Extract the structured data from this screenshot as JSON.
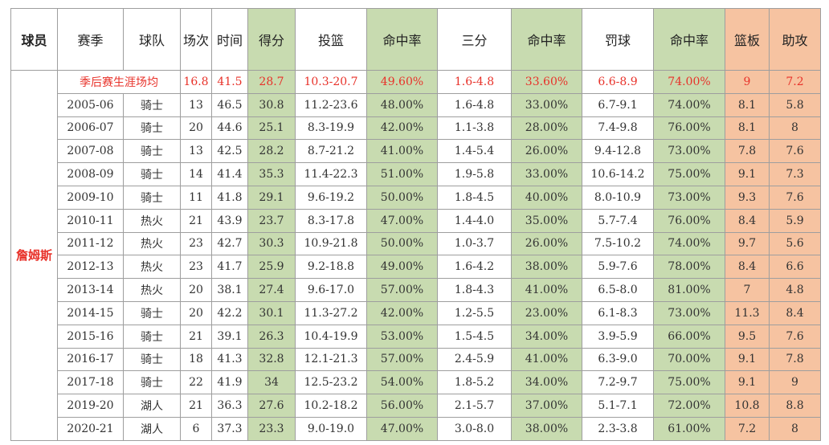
{
  "headers": [
    "球员",
    "赛季",
    "球队",
    "场次",
    "时间",
    "得分",
    "投篮",
    "命中率",
    "三分",
    "命中率",
    "罚球",
    "命中率",
    "篮板",
    "助攻"
  ],
  "player": "詹姆斯",
  "career": {
    "label": "季后赛生涯场均",
    "cells": [
      "16.8",
      "41.5",
      "28.7",
      "10.3-20.7",
      "49.60%",
      "1.6-4.8",
      "33.60%",
      "6.6-8.9",
      "74.00%",
      "9",
      "7.2"
    ]
  },
  "rows": [
    [
      "2005-06",
      "骑士",
      "13",
      "46.5",
      "30.8",
      "11.2-23.6",
      "48.00%",
      "1.6-4.8",
      "33.00%",
      "6.7-9.1",
      "74.00%",
      "8.1",
      "5.8"
    ],
    [
      "2006-07",
      "骑士",
      "20",
      "44.6",
      "25.1",
      "8.3-19.9",
      "42.00%",
      "1.1-3.8",
      "28.00%",
      "7.4-9.8",
      "76.00%",
      "8.1",
      "8"
    ],
    [
      "2007-08",
      "骑士",
      "13",
      "42.5",
      "28.2",
      "8.7-21.2",
      "41.00%",
      "1.4-5.4",
      "26.00%",
      "9.4-12.8",
      "73.00%",
      "7.8",
      "7.6"
    ],
    [
      "2008-09",
      "骑士",
      "14",
      "41.4",
      "35.3",
      "11.4-22.3",
      "51.00%",
      "1.9-5.8",
      "33.00%",
      "10.6-14.2",
      "75.00%",
      "9.1",
      "7.3"
    ],
    [
      "2009-10",
      "骑士",
      "11",
      "41.8",
      "29.1",
      "9.6-19.2",
      "50.00%",
      "1.8-4.5",
      "40.00%",
      "8.0-10.9",
      "73.00%",
      "9.3",
      "7.6"
    ],
    [
      "2010-11",
      "热火",
      "21",
      "43.9",
      "23.7",
      "8.3-17.8",
      "47.00%",
      "1.4-4.0",
      "35.00%",
      "5.7-7.4",
      "76.00%",
      "8.4",
      "5.9"
    ],
    [
      "2011-12",
      "热火",
      "23",
      "42.7",
      "30.3",
      "10.9-21.8",
      "50.00%",
      "1.0-3.7",
      "26.00%",
      "7.5-10.2",
      "74.00%",
      "9.7",
      "5.6"
    ],
    [
      "2012-13",
      "热火",
      "23",
      "41.7",
      "25.9",
      "9.2-18.8",
      "49.00%",
      "1.6-4.2",
      "38.00%",
      "5.9-7.6",
      "78.00%",
      "8.4",
      "6.6"
    ],
    [
      "2013-14",
      "热火",
      "20",
      "38.1",
      "27.4",
      "9.6-17.0",
      "57.00%",
      "1.8-4.3",
      "41.00%",
      "6.5-8.0",
      "81.00%",
      "7",
      "4.8"
    ],
    [
      "2014-15",
      "骑士",
      "20",
      "42.2",
      "30.1",
      "11.3-27.2",
      "42.00%",
      "1.2-5.5",
      "23.00%",
      "6.1-8.3",
      "73.00%",
      "11.3",
      "8.4"
    ],
    [
      "2015-16",
      "骑士",
      "21",
      "39.1",
      "26.3",
      "10.4-19.9",
      "53.00%",
      "1.5-4.5",
      "34.00%",
      "3.9-5.9",
      "66.00%",
      "9.5",
      "7.6"
    ],
    [
      "2016-17",
      "骑士",
      "18",
      "41.3",
      "32.8",
      "12.1-21.3",
      "57.00%",
      "2.4-5.9",
      "41.00%",
      "6.3-9.0",
      "70.00%",
      "9.1",
      "7.8"
    ],
    [
      "2017-18",
      "骑士",
      "22",
      "41.9",
      "34",
      "12.5-23.2",
      "54.00%",
      "1.8-5.2",
      "34.00%",
      "7.2-9.7",
      "75.00%",
      "9.1",
      "9"
    ],
    [
      "2019-20",
      "湖人",
      "21",
      "36.3",
      "27.6",
      "10.2-18.2",
      "56.00%",
      "2.1-5.7",
      "37.00%",
      "5.1-7.1",
      "72.00%",
      "10.8",
      "8.8"
    ],
    [
      "2020-21",
      "湖人",
      "6",
      "37.3",
      "23.3",
      "9.0-19.0",
      "47.00%",
      "3.0-8.0",
      "38.00%",
      "2.3-3.8",
      "61.00%",
      "7.2",
      "8"
    ]
  ],
  "colors": {
    "green": "#c8dbb0",
    "orange": "#f6c3a1",
    "career_text": "#e8322a"
  }
}
